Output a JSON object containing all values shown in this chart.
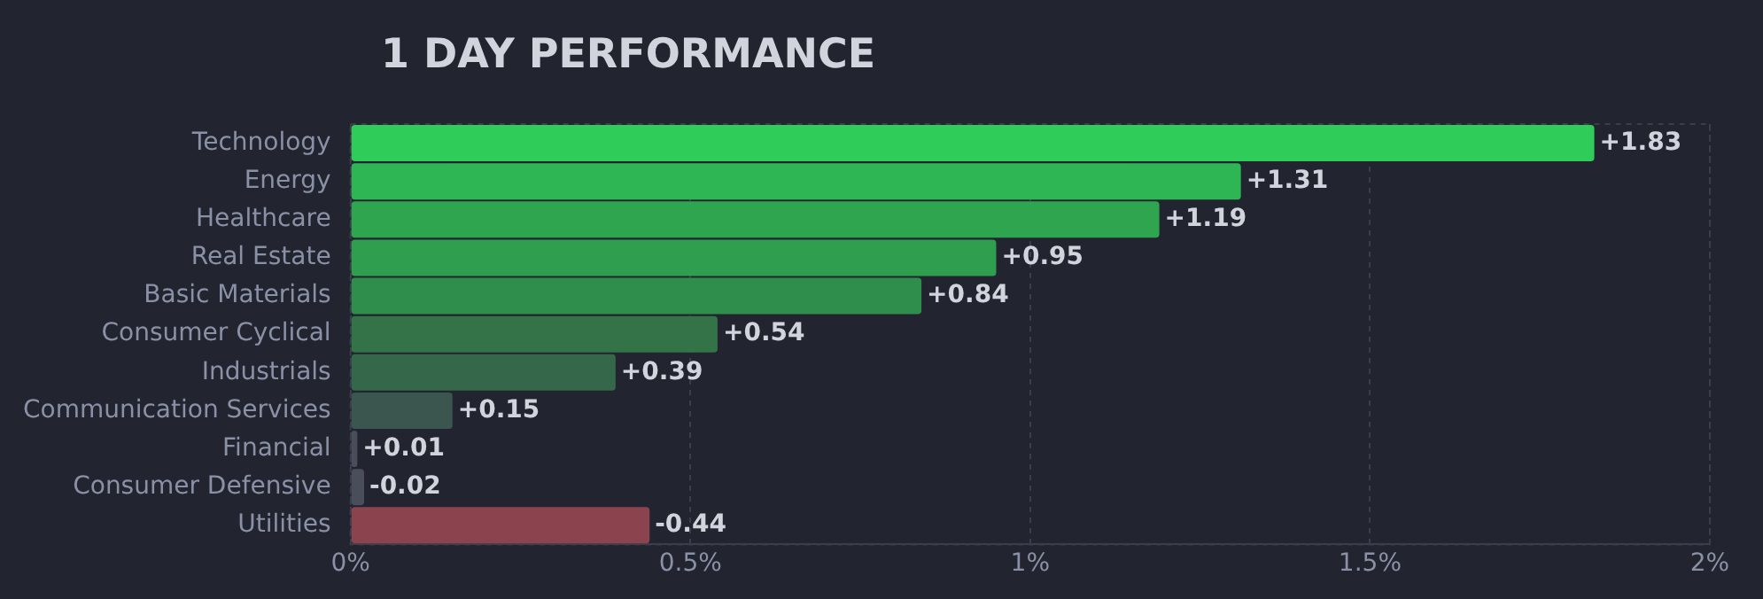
{
  "chart_data": {
    "type": "bar",
    "orientation": "horizontal",
    "title": "1 DAY PERFORMANCE",
    "categories": [
      "Technology",
      "Energy",
      "Healthcare",
      "Real Estate",
      "Basic Materials",
      "Consumer Cyclical",
      "Industrials",
      "Communication Services",
      "Financial",
      "Consumer Defensive",
      "Utilities"
    ],
    "values": [
      1.83,
      1.31,
      1.19,
      0.95,
      0.84,
      0.54,
      0.39,
      0.15,
      0.01,
      -0.02,
      -0.44
    ],
    "base": [
      0,
      0,
      0,
      0,
      0,
      0,
      0,
      0,
      0,
      0.02,
      0.44
    ],
    "value_labels": [
      "+1.83",
      "+1.31",
      "+1.19",
      "+0.95",
      "+0.84",
      "+0.54",
      "+0.39",
      "+0.15",
      "+0.01",
      "-0.02",
      "-0.44"
    ],
    "colors": [
      "#30cc5a",
      "#2fb654",
      "#30a550",
      "#2f9e4e",
      "#308e4d",
      "#347348",
      "#35674a",
      "#3b554f",
      "#4a4e5a",
      "#4a4e5a",
      "#8b444e"
    ],
    "xlim": [
      0,
      2
    ],
    "xticks": [
      {
        "value": 0,
        "label": "0%"
      },
      {
        "value": 0.5,
        "label": "0.5%"
      },
      {
        "value": 1,
        "label": "1%"
      },
      {
        "value": 1.5,
        "label": "1.5%"
      },
      {
        "value": 2,
        "label": "2%"
      }
    ],
    "grid": "x",
    "legend": false
  }
}
